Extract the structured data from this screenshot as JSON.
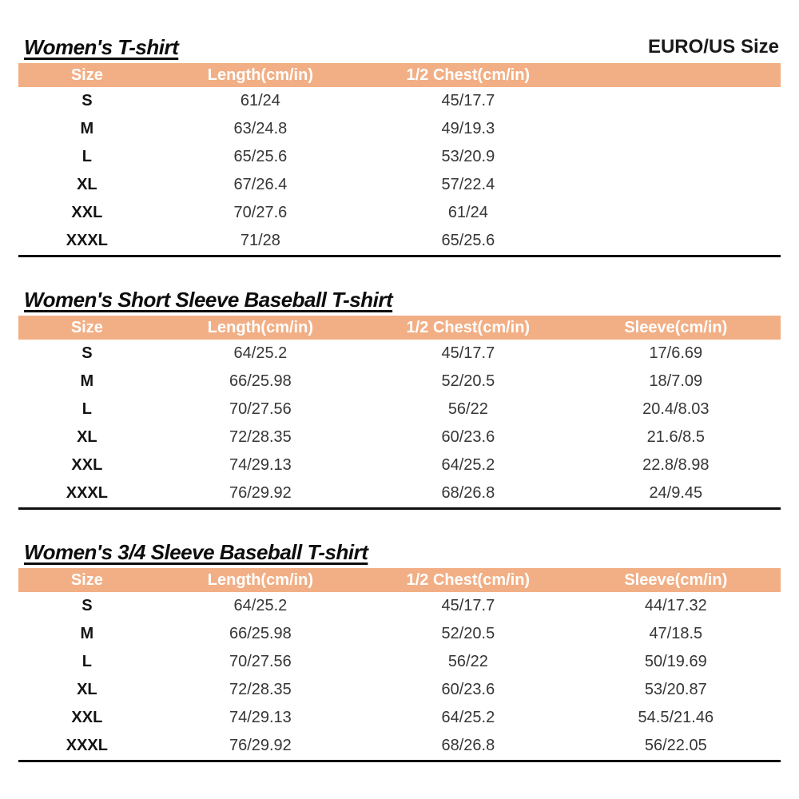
{
  "page": {
    "size_standard_label": "EURO/US Size"
  },
  "colors": {
    "header_bg": "#f2af85",
    "stripe_bg": "#eaeaea",
    "header_text": "#ffffff",
    "table_bottom_border": "#0f0f0f"
  },
  "tables": [
    {
      "title": "Women's T-shirt",
      "columns": [
        "Size",
        "Length(cm/in)",
        "1/2 Chest(cm/in)"
      ],
      "rows": [
        [
          "S",
          "61/24",
          "45/17.7"
        ],
        [
          "M",
          "63/24.8",
          "49/19.3"
        ],
        [
          "L",
          "65/25.6",
          "53/20.9"
        ],
        [
          "XL",
          "67/26.4",
          "57/22.4"
        ],
        [
          "XXL",
          "70/27.6",
          "61/24"
        ],
        [
          "XXXL",
          "71/28",
          "65/25.6"
        ]
      ]
    },
    {
      "title": "Women's Short Sleeve Baseball T-shirt",
      "columns": [
        "Size",
        "Length(cm/in)",
        "1/2 Chest(cm/in)",
        "Sleeve(cm/in)"
      ],
      "rows": [
        [
          "S",
          "64/25.2",
          "45/17.7",
          "17/6.69"
        ],
        [
          "M",
          "66/25.98",
          "52/20.5",
          "18/7.09"
        ],
        [
          "L",
          "70/27.56",
          "56/22",
          "20.4/8.03"
        ],
        [
          "XL",
          "72/28.35",
          "60/23.6",
          "21.6/8.5"
        ],
        [
          "XXL",
          "74/29.13",
          "64/25.2",
          "22.8/8.98"
        ],
        [
          "XXXL",
          "76/29.92",
          "68/26.8",
          "24/9.45"
        ]
      ]
    },
    {
      "title": "Women's 3/4 Sleeve Baseball T-shirt",
      "columns": [
        "Size",
        "Length(cm/in)",
        "1/2 Chest(cm/in)",
        "Sleeve(cm/in)"
      ],
      "rows": [
        [
          "S",
          "64/25.2",
          "45/17.7",
          "44/17.32"
        ],
        [
          "M",
          "66/25.98",
          "52/20.5",
          "47/18.5"
        ],
        [
          "L",
          "70/27.56",
          "56/22",
          "50/19.69"
        ],
        [
          "XL",
          "72/28.35",
          "60/23.6",
          "53/20.87"
        ],
        [
          "XXL",
          "74/29.13",
          "64/25.2",
          "54.5/21.46"
        ],
        [
          "XXXL",
          "76/29.92",
          "68/26.8",
          "56/22.05"
        ]
      ]
    }
  ]
}
